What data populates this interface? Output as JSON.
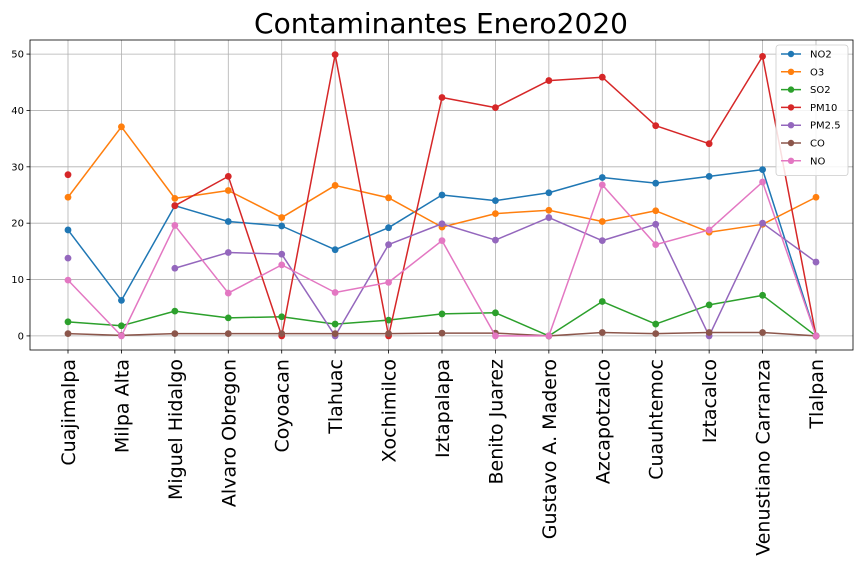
{
  "chart_data": {
    "type": "line",
    "title": "Contaminantes Enero2020",
    "xlabel": "",
    "ylabel": "",
    "ylim": [
      -2.5,
      52.5
    ],
    "yticks": [
      0,
      10,
      20,
      30,
      40,
      50
    ],
    "grid": true,
    "legend_position": "top-right",
    "categories": [
      "Cuajimalpa",
      "Milpa Alta",
      "Miguel Hidalgo",
      "Alvaro Obregon",
      "Coyoacan",
      "Tlahuac",
      "Xochimilco",
      "Iztapalapa",
      "Benito Juarez",
      "Gustavo A. Madero",
      "Azcapotzalco",
      "Cuauhtemoc",
      "Iztacalco",
      "Venustiano Carranza",
      "Tlalpan"
    ],
    "series": [
      {
        "name": "NO2",
        "color": "#1f77b4",
        "values": [
          18.8,
          6.3,
          23.1,
          20.3,
          19.5,
          15.3,
          19.2,
          25.0,
          24.0,
          25.4,
          28.1,
          27.1,
          28.3,
          29.5,
          0.0
        ]
      },
      {
        "name": "O3",
        "color": "#ff7f0e",
        "values": [
          24.6,
          37.1,
          24.4,
          25.8,
          21.0,
          26.7,
          24.5,
          19.3,
          21.7,
          22.3,
          20.3,
          22.2,
          18.4,
          19.8,
          24.6
        ]
      },
      {
        "name": "SO2",
        "color": "#2ca02c",
        "values": [
          2.5,
          1.8,
          4.4,
          3.2,
          3.4,
          2.1,
          2.8,
          3.9,
          4.1,
          0.0,
          6.1,
          2.1,
          5.5,
          7.2,
          0.0
        ]
      },
      {
        "name": "PM10",
        "color": "#d62728",
        "values": [
          28.6,
          null,
          23.1,
          28.3,
          0.0,
          49.9,
          0.0,
          42.3,
          40.5,
          45.3,
          45.9,
          37.3,
          34.1,
          49.6,
          0.0
        ]
      },
      {
        "name": "PM2.5",
        "color": "#9467bd",
        "values": [
          13.8,
          null,
          12.0,
          14.8,
          14.5,
          0.0,
          16.2,
          19.9,
          17.0,
          21.0,
          16.9,
          19.8,
          0.0,
          20.0,
          13.1
        ]
      },
      {
        "name": "CO",
        "color": "#8c564b",
        "values": [
          0.4,
          0.1,
          0.4,
          0.4,
          0.4,
          0.4,
          0.4,
          0.5,
          0.5,
          0.0,
          0.6,
          0.4,
          0.6,
          0.6,
          0.0
        ]
      },
      {
        "name": "NO",
        "color": "#e377c2",
        "values": [
          9.9,
          0.0,
          19.6,
          7.6,
          12.6,
          7.7,
          9.5,
          16.9,
          0.0,
          0.0,
          26.8,
          16.2,
          18.8,
          27.3,
          0.0
        ]
      }
    ]
  }
}
